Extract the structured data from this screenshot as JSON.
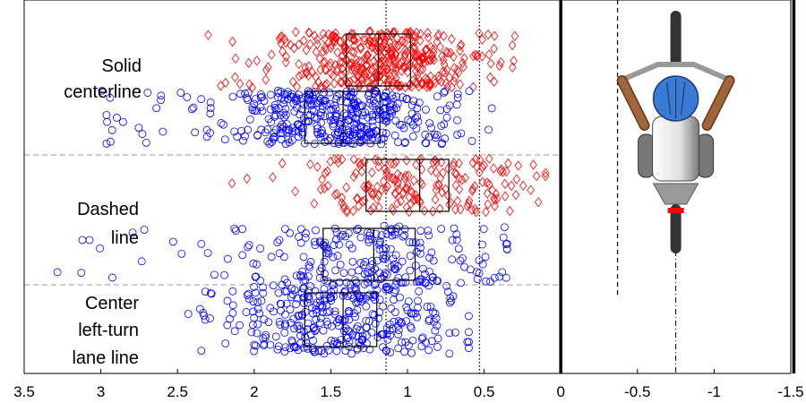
{
  "colors": {
    "diamond": "#ff0000",
    "circle": "#0000ff",
    "axis": "#000000",
    "separator": "#999999",
    "helmet": "#3a7bd5",
    "arm": "#a0653a",
    "frame": "#9a9a9a",
    "tire": "#333333",
    "taillight": "#ff0000"
  },
  "chart_data": {
    "type": "scatter",
    "x_reversed": true,
    "xlim": [
      3.5,
      -1.5
    ],
    "xticks": [
      {
        "value": 3.5,
        "label": "3.5"
      },
      {
        "value": 3,
        "label": "3"
      },
      {
        "value": 2.5,
        "label": "2.5"
      },
      {
        "value": 2,
        "label": "2"
      },
      {
        "value": 1.5,
        "label": "1.5"
      },
      {
        "value": 1,
        "label": "1"
      },
      {
        "value": 0.5,
        "label": "0.5"
      },
      {
        "value": 0,
        "label": "0"
      },
      {
        "value": -0.5,
        "label": "-0.5"
      },
      {
        "value": -1,
        "label": "-1"
      },
      {
        "value": -1.5,
        "label": "-1.5"
      }
    ],
    "groups": [
      {
        "label_lines": [
          "Solid",
          "centerline"
        ]
      },
      {
        "label_lines": [
          "Dashed",
          "line"
        ]
      },
      {
        "label_lines": [
          "Center",
          "left-turn",
          "lane line"
        ]
      }
    ],
    "vertical_lines": [
      {
        "x": 1.14,
        "style": "dotted"
      },
      {
        "x": 0.53,
        "style": "dotted"
      },
      {
        "x": 0,
        "style": "solid-thick"
      },
      {
        "x": -0.37,
        "style": "dashed"
      },
      {
        "x": -0.75,
        "style": "dashdot"
      },
      {
        "x": -1.52,
        "style": "solid-thick"
      }
    ],
    "series": [
      {
        "marker": "diamond",
        "group": 0,
        "x_range": [
          0.3,
          2.3
        ],
        "count": 420,
        "center": 1.2,
        "box": {
          "q1": 0.98,
          "median": 1.19,
          "q3": 1.4
        }
      },
      {
        "marker": "circle",
        "group": 0,
        "x_range": [
          0.45,
          3.05
        ],
        "count": 420,
        "center": 1.4,
        "box": {
          "q1": 1.18,
          "median": 1.42,
          "q3": 1.67
        }
      },
      {
        "marker": "diamond",
        "group": 1,
        "x_range": [
          0.1,
          2.2
        ],
        "count": 200,
        "center": 0.95,
        "box": {
          "q1": 0.73,
          "median": 0.92,
          "q3": 1.27
        }
      },
      {
        "marker": "circle",
        "group": 1,
        "x_range": [
          0.35,
          3.3
        ],
        "count": 220,
        "center": 1.2,
        "box": {
          "q1": 0.95,
          "median": 1.22,
          "q3": 1.55
        }
      },
      {
        "marker": "circle",
        "group": 2,
        "x_range": [
          0.6,
          2.45
        ],
        "count": 360,
        "center": 1.4,
        "box": {
          "q1": 1.2,
          "median": 1.42,
          "q3": 1.67
        }
      }
    ]
  }
}
